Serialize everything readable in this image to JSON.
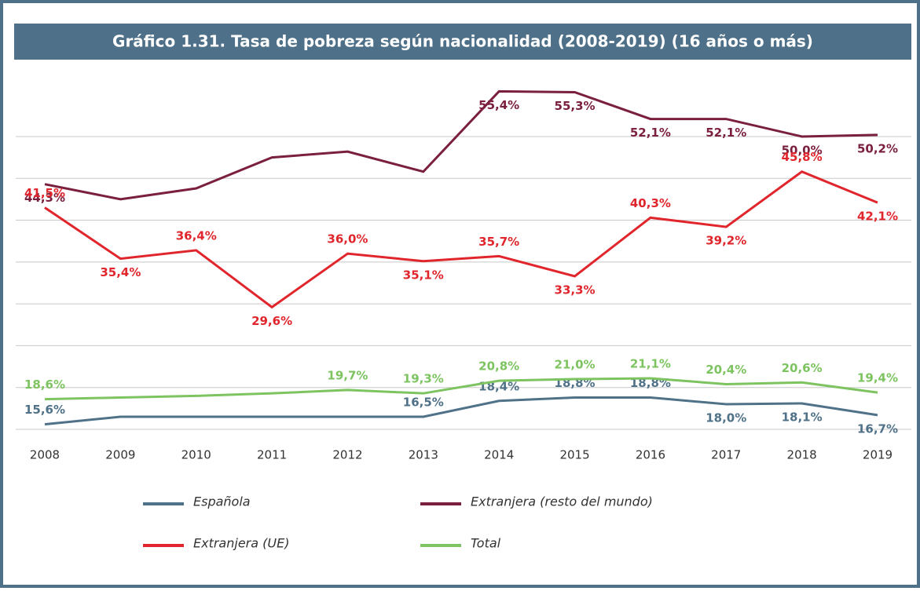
{
  "chart_data": {
    "type": "line",
    "title": "Gráfico 1.31. Tasa de pobreza según nacionalidad (2008-2019) (16 años o más)",
    "categories": [
      "2008",
      "2009",
      "2010",
      "2011",
      "2012",
      "2013",
      "2014",
      "2015",
      "2016",
      "2017",
      "2018",
      "2019"
    ],
    "ylim": [
      15,
      56
    ],
    "yticks": [
      15,
      20,
      25,
      30,
      35,
      40,
      45,
      50
    ],
    "grid": true,
    "series": [
      {
        "name": "Española",
        "color": "#4f7289",
        "values": [
          15.6,
          16.5,
          16.5,
          16.5,
          16.5,
          16.5,
          18.4,
          18.8,
          18.8,
          18.0,
          18.1,
          16.7
        ],
        "value_labels": [
          "15,6%",
          null,
          null,
          null,
          null,
          "16,5%",
          "18,4%",
          "18,8%",
          "18,8%",
          "18,0%",
          "18,1%",
          "16,7%"
        ]
      },
      {
        "name": "Extranjera (resto del mundo)",
        "color": "#7a1f3d",
        "values": [
          44.3,
          42.5,
          43.8,
          47.5,
          48.2,
          45.8,
          55.4,
          55.3,
          52.1,
          52.1,
          50.0,
          50.2
        ],
        "value_labels": [
          "44,3%",
          null,
          null,
          null,
          null,
          null,
          "55,4%",
          "55,3%",
          "52,1%",
          "52,1%",
          "50,0%",
          "50,2%"
        ]
      },
      {
        "name": "Extranjera (UE)",
        "color": "#e0262c",
        "values": [
          41.5,
          35.4,
          36.4,
          29.6,
          36.0,
          35.1,
          35.7,
          33.3,
          40.3,
          39.2,
          45.8,
          42.1
        ],
        "value_labels": [
          "41,5%",
          "35,4%",
          "36,4%",
          "29,6%",
          "36,0%",
          "35,1%",
          "35,7%",
          "33,3%",
          "40,3%",
          "39,2%",
          "45,8%",
          "42,1%"
        ]
      },
      {
        "name": "Total",
        "color": "#7dc460",
        "values": [
          18.6,
          18.8,
          19.0,
          19.3,
          19.7,
          19.3,
          20.8,
          21.0,
          21.1,
          20.4,
          20.6,
          19.4
        ],
        "value_labels": [
          "18,6%",
          null,
          null,
          null,
          "19,7%",
          "19,3%",
          "20,8%",
          "21,0%",
          "21,1%",
          "20,4%",
          "20,6%",
          "19,4%"
        ]
      }
    ]
  }
}
